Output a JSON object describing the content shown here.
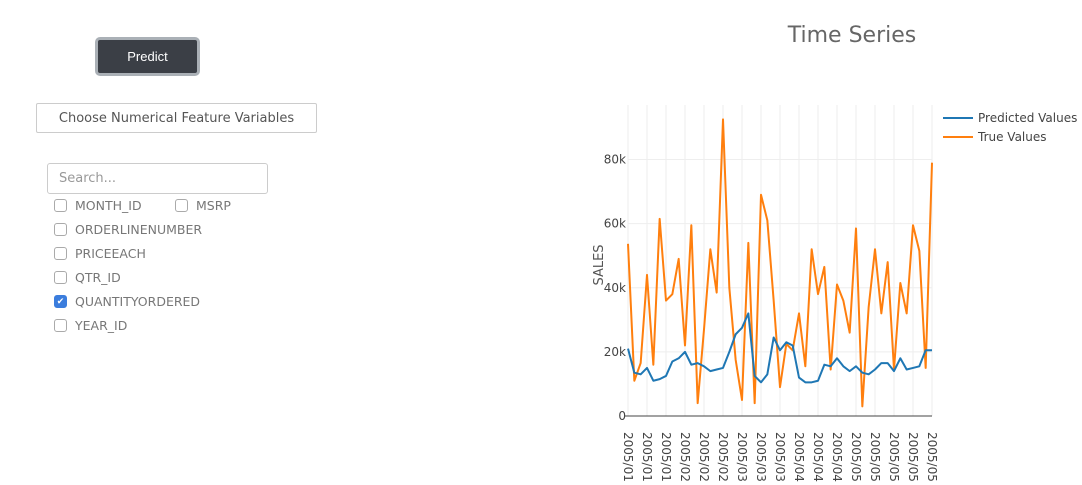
{
  "controls": {
    "predict_label": "Predict",
    "choose_label": "Choose Numerical Feature Variables",
    "search_placeholder": "Search...",
    "options": [
      {
        "label": "MONTH_ID",
        "checked": false
      },
      {
        "label": "MSRP",
        "checked": false
      },
      {
        "label": "ORDERLINENUMBER",
        "checked": false
      },
      {
        "label": "PRICEEACH",
        "checked": false
      },
      {
        "label": "QTR_ID",
        "checked": false
      },
      {
        "label": "QUANTITYORDERED",
        "checked": true
      },
      {
        "label": "YEAR_ID",
        "checked": false
      }
    ]
  },
  "chart_data": {
    "type": "line",
    "title": "Time Series",
    "xlabel": "",
    "ylabel": "SALES",
    "ylim": [
      0,
      97000
    ],
    "yticks": [
      0,
      20000,
      40000,
      60000,
      80000
    ],
    "ytick_labels": [
      "0",
      "20k",
      "40k",
      "60k",
      "80k"
    ],
    "xtick_labels": [
      "2005/01",
      "2005/01",
      "2005/01",
      "2005/02",
      "2005/02",
      "2005/02",
      "2005/03",
      "2005/03",
      "2005/03",
      "2005/04",
      "2005/04",
      "2005/04",
      "2005/05",
      "2005/05",
      "2005/05",
      "2005/05",
      "2005/05"
    ],
    "xtick_every": 3,
    "grid": true,
    "legend": "top-right",
    "series": [
      {
        "name": "Predicted Values",
        "color": "#1f77b4",
        "values": [
          21000,
          13500,
          13000,
          15000,
          11000,
          11500,
          12500,
          17000,
          18000,
          20000,
          16000,
          16500,
          15500,
          14000,
          14500,
          15000,
          20000,
          25500,
          27500,
          32000,
          12500,
          10500,
          13000,
          24500,
          20500,
          23000,
          22000,
          12000,
          10500,
          10500,
          11000,
          16000,
          15500,
          18000,
          15500,
          14000,
          15500,
          13500,
          13000,
          14500,
          16500,
          16500,
          14000,
          18000,
          14500,
          15000,
          15500,
          20500,
          20500
        ]
      },
      {
        "name": "True Values",
        "color": "#ff7f0e",
        "values": [
          53700,
          11000,
          16500,
          44000,
          16000,
          61500,
          36000,
          38000,
          49000,
          22000,
          59500,
          4000,
          27000,
          52000,
          38500,
          92500,
          40000,
          17500,
          5000,
          54000,
          4000,
          69000,
          61000,
          36000,
          9000,
          22500,
          20500,
          32000,
          15500,
          52000,
          38000,
          46500,
          14500,
          41000,
          36000,
          26000,
          58500,
          3000,
          34000,
          52000,
          32000,
          48000,
          14500,
          41500,
          32000,
          59500,
          51500,
          15000,
          79000
        ]
      }
    ]
  }
}
